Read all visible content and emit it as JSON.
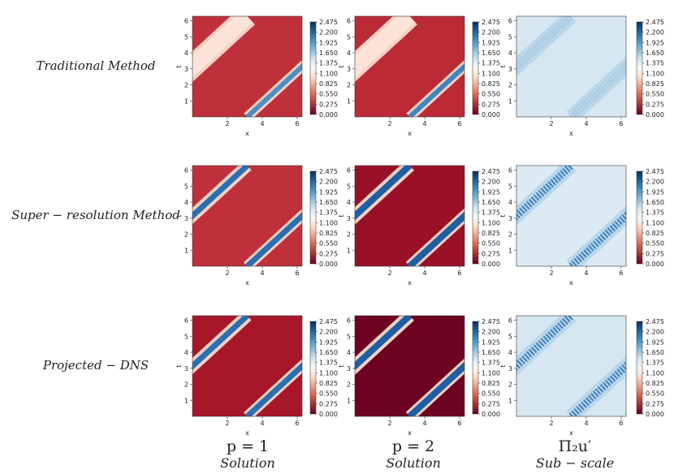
{
  "rows": [
    {
      "label": "Traditional Method"
    },
    {
      "label": "Super − resolution Method"
    },
    {
      "label": "Projected − DNS"
    }
  ],
  "columns": [
    {
      "title": "p = 1",
      "subtitle": "Solution"
    },
    {
      "title": "p = 2",
      "subtitle": "Solution"
    },
    {
      "title": "Π₂u′",
      "subtitle": "Sub − scale"
    }
  ],
  "axes": {
    "xlabel": "x",
    "ylabel": "t",
    "xlim": [
      0,
      6.28
    ],
    "ylim": [
      0,
      6.28
    ],
    "xticks": [
      2,
      4,
      6
    ],
    "yticks": [
      1,
      2,
      3,
      4,
      5,
      6
    ]
  },
  "colorbar": {
    "clim": [
      0,
      2.475
    ],
    "ticks": [
      {
        "value": 0,
        "label": "0.000"
      },
      {
        "value": 0.275,
        "label": "0.275"
      },
      {
        "value": 0.55,
        "label": "0.550"
      },
      {
        "value": 0.825,
        "label": "0.825"
      },
      {
        "value": 1.1,
        "label": "1.100"
      },
      {
        "value": 1.375,
        "label": "1.375"
      },
      {
        "value": 1.65,
        "label": "1.650"
      },
      {
        "value": 1.925,
        "label": "1.925"
      },
      {
        "value": 2.2,
        "label": "2.200"
      },
      {
        "value": 2.475,
        "label": "2.475"
      }
    ]
  }
}
